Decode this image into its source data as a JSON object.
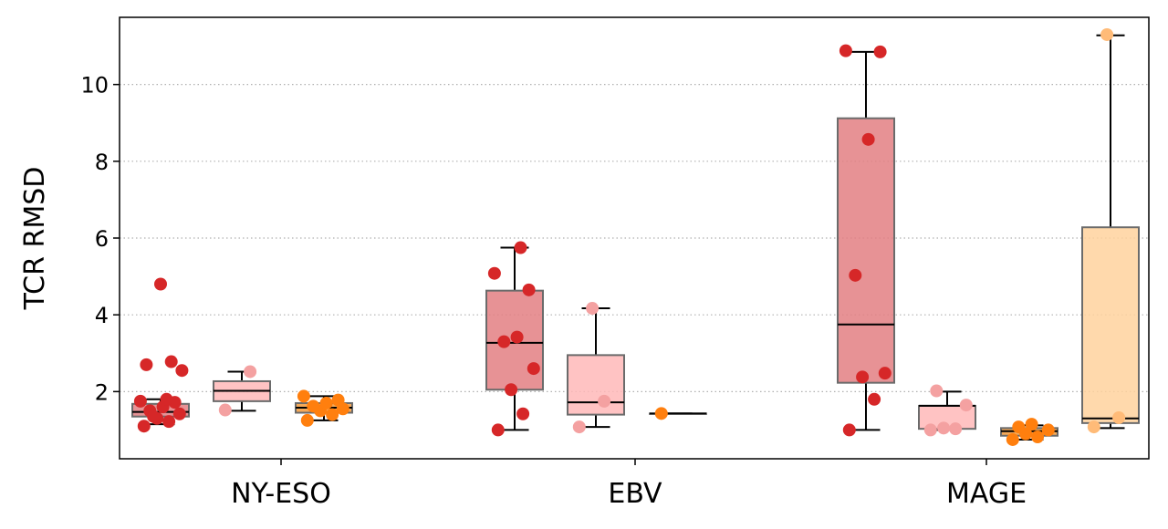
{
  "chart_data": {
    "type": "box",
    "ylabel": "TCR RMSD",
    "xlabel": "",
    "title": "",
    "categories": [
      "NY-ESO",
      "EBV",
      "MAGE"
    ],
    "yticks": [
      2,
      4,
      6,
      8,
      10
    ],
    "ylim": [
      0.25,
      11.75
    ],
    "grid": "y-dotted",
    "box_colors": [
      "#e37f82",
      "#ffb8b8",
      "#f29a3c",
      "#ffd29e"
    ],
    "point_colors": [
      "#d62728",
      "#f4a1a1",
      "#ff7f0e",
      "#ffbb78"
    ],
    "groups": [
      {
        "category": "NY-ESO",
        "boxes": [
          {
            "slot": 0,
            "whisker_low": 1.15,
            "q1": 1.35,
            "median": 1.47,
            "q3": 1.68,
            "whisker_high": 1.8,
            "points": [
              1.1,
              1.22,
              1.3,
              1.42,
              1.5,
              1.6,
              1.72,
              1.75,
              1.8,
              1.35,
              2.55,
              2.7,
              2.78,
              4.8
            ]
          },
          {
            "slot": 1,
            "whisker_low": 1.5,
            "q1": 1.75,
            "median": 2.02,
            "q3": 2.27,
            "whisker_high": 2.52,
            "points": [
              1.52,
              2.52
            ]
          },
          {
            "slot": 2,
            "whisker_low": 1.25,
            "q1": 1.45,
            "median": 1.58,
            "q3": 1.7,
            "whisker_high": 1.88,
            "points": [
              1.25,
              1.4,
              1.5,
              1.55,
              1.62,
              1.7,
              1.78,
              1.88
            ]
          }
        ]
      },
      {
        "category": "EBV",
        "boxes": [
          {
            "slot": 0,
            "whisker_low": 1.0,
            "q1": 2.05,
            "median": 3.27,
            "q3": 4.63,
            "whisker_high": 5.75,
            "points": [
              1.0,
              1.42,
              2.05,
              2.6,
              3.3,
              3.42,
              4.65,
              5.08,
              5.75
            ]
          },
          {
            "slot": 1,
            "whisker_low": 1.08,
            "q1": 1.4,
            "median": 1.72,
            "q3": 2.95,
            "whisker_high": 4.17,
            "points": [
              1.08,
              1.75,
              4.17
            ]
          },
          {
            "slot": 2,
            "whisker_low": 1.43,
            "q1": 1.43,
            "median": 1.43,
            "q3": 1.43,
            "whisker_high": 1.43,
            "points": [
              1.43
            ]
          }
        ]
      },
      {
        "category": "MAGE",
        "boxes": [
          {
            "slot": 0,
            "whisker_low": 1.0,
            "q1": 2.23,
            "median": 3.75,
            "q3": 9.12,
            "whisker_high": 10.85,
            "points": [
              1.0,
              1.8,
              2.38,
              2.48,
              5.03,
              8.57,
              10.85,
              10.88
            ]
          },
          {
            "slot": 1,
            "whisker_low": 1.0,
            "q1": 1.03,
            "median": 1.63,
            "q3": 1.63,
            "whisker_high": 2.0,
            "points": [
              1.0,
              1.03,
              1.05,
              1.65,
              2.02
            ]
          },
          {
            "slot": 2,
            "whisker_low": 0.75,
            "q1": 0.85,
            "median": 0.97,
            "q3": 1.05,
            "whisker_high": 1.12,
            "points": [
              0.75,
              0.82,
              0.9,
              1.0,
              1.08,
              1.15
            ]
          },
          {
            "slot": 3,
            "whisker_low": 1.05,
            "q1": 1.18,
            "median": 1.3,
            "q3": 6.28,
            "whisker_high": 11.28,
            "points": [
              1.08,
              1.32,
              11.3
            ]
          }
        ]
      }
    ]
  }
}
